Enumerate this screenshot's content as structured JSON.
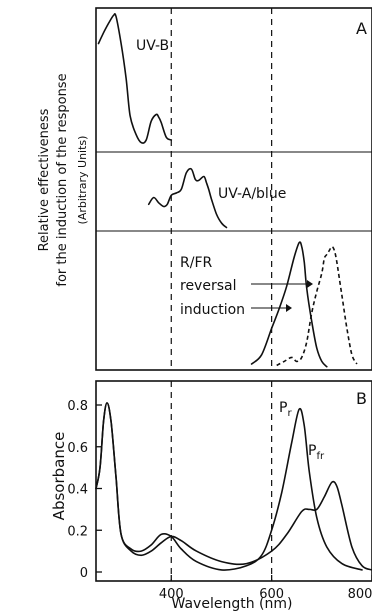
{
  "chart_data": [
    {
      "panel": "A",
      "type": "line",
      "ylabel": "Relative effectiveness for the induction of the response",
      "ylabel_units": "(Arbitrary Units)",
      "xlim": [
        250,
        800
      ],
      "reference_lines_x": [
        400,
        600,
        800
      ],
      "sections": [
        {
          "label": "UV-B",
          "ylim": [
            0,
            1
          ],
          "series": [
            {
              "x": [
                255,
                265,
                275,
                285,
                290,
                300,
                310,
                318,
                330,
                340,
                350,
                360,
                370,
                375,
                380,
                390,
                400
              ],
              "y": [
                0.78,
                0.86,
                0.93,
                0.99,
                0.98,
                0.78,
                0.52,
                0.24,
                0.1,
                0.04,
                0.06,
                0.2,
                0.25,
                0.23,
                0.19,
                0.08,
                0.06
              ]
            }
          ]
        },
        {
          "label": "UV-A/blue",
          "ylim": [
            0,
            1
          ],
          "series": [
            {
              "x": [
                355,
                365,
                375,
                385,
                392,
                400,
                410,
                420,
                430,
                440,
                448,
                455,
                465,
                470,
                475,
                480,
                490,
                500,
                510
              ],
              "y": [
                0.33,
                0.42,
                0.35,
                0.3,
                0.33,
                0.45,
                0.48,
                0.53,
                0.75,
                0.8,
                0.66,
                0.65,
                0.7,
                0.62,
                0.52,
                0.4,
                0.2,
                0.08,
                0.02
              ]
            }
          ]
        },
        {
          "label": "R/FR",
          "ylim": [
            0,
            1
          ],
          "series": [
            {
              "name": "induction",
              "style": "solid",
              "x": [
                560,
                580,
                600,
                615,
                630,
                645,
                655,
                660,
                665,
                670,
                680,
                690,
                700,
                710
              ],
              "y": [
                0.03,
                0.1,
                0.3,
                0.45,
                0.62,
                0.84,
                0.95,
                0.92,
                0.8,
                0.6,
                0.35,
                0.15,
                0.05,
                0.01
              ]
            },
            {
              "name": "reversal",
              "style": "dashed",
              "x": [
                610,
                625,
                640,
                650,
                660,
                670,
                680,
                690,
                700,
                705,
                710,
                715,
                720,
                725,
                730,
                740,
                750,
                760,
                770
              ],
              "y": [
                0.02,
                0.05,
                0.08,
                0.05,
                0.08,
                0.2,
                0.42,
                0.58,
                0.72,
                0.83,
                0.86,
                0.89,
                0.92,
                0.89,
                0.8,
                0.55,
                0.3,
                0.1,
                0.03
              ]
            }
          ]
        }
      ]
    },
    {
      "panel": "B",
      "type": "line",
      "xlabel": "Wavelength (nm)",
      "ylabel": "Absorbance",
      "xlim": [
        250,
        800
      ],
      "ylim": [
        0,
        0.9
      ],
      "xticks": [
        400,
        600,
        800
      ],
      "yticks": [
        0,
        0.2,
        0.4,
        0.6,
        0.8
      ],
      "reference_lines_x": [
        400,
        600,
        800
      ],
      "series": [
        {
          "name": "Pr",
          "style": "solid",
          "x": [
            250,
            258,
            265,
            272,
            280,
            290,
            300,
            320,
            340,
            360,
            380,
            400,
            420,
            450,
            500,
            550,
            580,
            600,
            620,
            640,
            655,
            665,
            675,
            690,
            710,
            740,
            780
          ],
          "y": [
            0.4,
            0.5,
            0.72,
            0.81,
            0.72,
            0.45,
            0.18,
            0.11,
            0.1,
            0.13,
            0.18,
            0.17,
            0.11,
            0.05,
            0.01,
            0.03,
            0.08,
            0.2,
            0.38,
            0.62,
            0.78,
            0.7,
            0.48,
            0.26,
            0.12,
            0.04,
            0.01
          ]
        },
        {
          "name": "Pfr",
          "style": "solid",
          "x": [
            250,
            258,
            265,
            272,
            280,
            290,
            300,
            320,
            340,
            360,
            380,
            400,
            420,
            450,
            500,
            550,
            600,
            630,
            660,
            675,
            690,
            705,
            720,
            730,
            740,
            760,
            780,
            800
          ],
          "y": [
            0.4,
            0.5,
            0.72,
            0.81,
            0.72,
            0.45,
            0.18,
            0.1,
            0.08,
            0.1,
            0.14,
            0.17,
            0.15,
            0.1,
            0.05,
            0.04,
            0.1,
            0.18,
            0.29,
            0.3,
            0.3,
            0.36,
            0.43,
            0.41,
            0.32,
            0.12,
            0.03,
            0.01
          ]
        }
      ],
      "curve_labels": [
        {
          "text": "P",
          "sub": "r"
        },
        {
          "text": "P",
          "sub": "fr"
        }
      ]
    }
  ],
  "panel_labels": {
    "a": "A",
    "b": "B"
  },
  "annotations": {
    "reversal": "reversal",
    "induction": "induction"
  }
}
